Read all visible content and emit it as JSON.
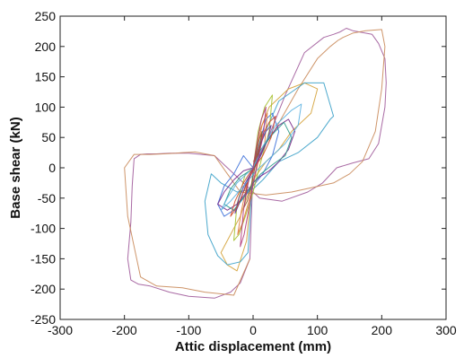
{
  "chart_data": {
    "type": "line",
    "title": "",
    "xlabel": "Attic displacement (mm)",
    "ylabel": "Base shear (kN)",
    "xlim": [
      -300,
      300
    ],
    "ylim": [
      -250,
      250
    ],
    "xticks": [
      -300,
      -200,
      -100,
      0,
      100,
      200,
      300
    ],
    "yticks": [
      -250,
      -200,
      -150,
      -100,
      -50,
      0,
      50,
      100,
      150,
      200,
      250
    ],
    "grid": false,
    "legend": false,
    "series": [
      {
        "color": "#a05a9a",
        "x": [
          0,
          20,
          50,
          80,
          110,
          125,
          135,
          145,
          155,
          185,
          195,
          205,
          207,
          205,
          195,
          180,
          155,
          130,
          108,
          85,
          45,
          10,
          -20,
          -60,
          -100,
          -130,
          -150,
          -165,
          -175,
          -185,
          -188,
          -190,
          -195,
          -190,
          -178,
          -160,
          -130,
          -100,
          -60,
          -35,
          -20,
          -5,
          0
        ],
        "y": [
          0,
          40,
          120,
          190,
          215,
          220,
          224,
          230,
          226,
          220,
          205,
          180,
          140,
          100,
          40,
          15,
          8,
          0,
          -25,
          -40,
          -55,
          -50,
          -20,
          20,
          24,
          24,
          23,
          23,
          22,
          15,
          -30,
          -90,
          -150,
          -185,
          -192,
          -195,
          -205,
          -212,
          -215,
          -205,
          -190,
          -150,
          0
        ]
      },
      {
        "color": "#c98a5a",
        "x": [
          0,
          30,
          70,
          100,
          120,
          132,
          140,
          155,
          175,
          200,
          205,
          200,
          190,
          170,
          150,
          125,
          60,
          20,
          -20,
          -60,
          -90,
          -110,
          -120,
          -140,
          -160,
          -185,
          -200,
          -195,
          -175,
          -150,
          -110,
          -75,
          -30,
          -5
        ],
        "y": [
          10,
          55,
          130,
          180,
          200,
          210,
          215,
          222,
          226,
          228,
          200,
          130,
          60,
          10,
          -10,
          -25,
          -40,
          -45,
          -40,
          20,
          26,
          25,
          24,
          23,
          22,
          22,
          0,
          -80,
          -180,
          -195,
          -198,
          -205,
          -210,
          -150
        ]
      },
      {
        "color": "#d4a23a",
        "x": [
          0,
          10,
          25,
          55,
          80,
          100,
          90,
          60,
          40,
          20,
          0,
          -20,
          -40,
          -50,
          -40,
          -25,
          -10,
          0
        ],
        "y": [
          0,
          60,
          100,
          130,
          140,
          130,
          90,
          60,
          30,
          10,
          -20,
          -80,
          -120,
          -140,
          -160,
          -170,
          -120,
          0
        ]
      },
      {
        "color": "#3aa0c8",
        "x": [
          0,
          15,
          40,
          80,
          110,
          125,
          120,
          100,
          70,
          40,
          15,
          0,
          -25,
          -50,
          -65,
          -75,
          -70,
          -55,
          -40,
          -20,
          -8,
          0
        ],
        "y": [
          0,
          50,
          110,
          140,
          140,
          85,
          80,
          50,
          25,
          10,
          -20,
          -35,
          -40,
          -25,
          -10,
          -55,
          -110,
          -145,
          -160,
          -155,
          -140,
          0
        ]
      },
      {
        "color": "#3b6fd9",
        "x": [
          0,
          10,
          20,
          30,
          40,
          30,
          15,
          0,
          -15,
          -30,
          -45,
          -55,
          -45,
          -30,
          -15,
          0
        ],
        "y": [
          0,
          40,
          80,
          90,
          60,
          20,
          -10,
          -30,
          -50,
          -70,
          -80,
          -60,
          -30,
          -10,
          20,
          0
        ]
      },
      {
        "color": "#a4bf2a",
        "x": [
          0,
          8,
          18,
          30,
          25,
          12,
          0,
          -12,
          -22,
          -30,
          -25,
          -12,
          0
        ],
        "y": [
          0,
          60,
          100,
          120,
          60,
          10,
          -40,
          -80,
          -110,
          -120,
          -60,
          -10,
          0
        ]
      },
      {
        "color": "#e07a3a",
        "x": [
          0,
          6,
          14,
          22,
          18,
          8,
          0,
          -8,
          -16,
          -24,
          -18,
          -8,
          0
        ],
        "y": [
          0,
          30,
          70,
          90,
          40,
          10,
          -30,
          -60,
          -90,
          -110,
          -70,
          -20,
          0
        ]
      },
      {
        "color": "#7a2a8a",
        "x": [
          0,
          10,
          25,
          40,
          55,
          65,
          55,
          40,
          25,
          10,
          0,
          -10,
          -25,
          -40,
          -55,
          -45,
          -30,
          -15,
          0
        ],
        "y": [
          0,
          20,
          50,
          70,
          80,
          60,
          30,
          10,
          -5,
          -15,
          -25,
          -40,
          -60,
          -70,
          -60,
          -40,
          -20,
          -5,
          0
        ]
      },
      {
        "color": "#5a3a9a",
        "x": [
          0,
          5,
          12,
          20,
          28,
          22,
          12,
          4,
          -4,
          -12,
          -20,
          -28,
          -22,
          -12,
          -4,
          0
        ],
        "y": [
          0,
          15,
          40,
          60,
          70,
          45,
          20,
          5,
          -10,
          -30,
          -55,
          -75,
          -50,
          -25,
          -10,
          0
        ]
      },
      {
        "color": "#2a9a8a",
        "x": [
          0,
          12,
          30,
          48,
          60,
          50,
          30,
          12,
          0,
          -12,
          -30,
          -45,
          -35,
          -20,
          -5,
          0
        ],
        "y": [
          0,
          30,
          55,
          75,
          50,
          20,
          5,
          -10,
          -25,
          -45,
          -70,
          -60,
          -35,
          -15,
          -5,
          0
        ]
      },
      {
        "color": "#d24a2a",
        "x": [
          0,
          7,
          15,
          25,
          35,
          28,
          15,
          5,
          -5,
          -15,
          -25,
          -35,
          -28,
          -15,
          -5,
          0
        ],
        "y": [
          0,
          25,
          55,
          75,
          85,
          50,
          20,
          5,
          -15,
          -40,
          -65,
          -80,
          -55,
          -25,
          -8,
          0
        ]
      },
      {
        "color": "#8a5a2a",
        "x": [
          0,
          4,
          9,
          14,
          10,
          4,
          0,
          -4,
          -9,
          -14,
          -10,
          -4,
          0
        ],
        "y": [
          0,
          20,
          45,
          60,
          30,
          8,
          -15,
          -35,
          -55,
          -65,
          -35,
          -10,
          0
        ]
      },
      {
        "color": "#5ab0e0",
        "x": [
          0,
          15,
          35,
          60,
          75,
          70,
          50,
          25,
          5,
          -15,
          -35,
          -50,
          -40,
          -25,
          -10,
          0
        ],
        "y": [
          0,
          35,
          70,
          95,
          105,
          70,
          40,
          15,
          -5,
          -30,
          -55,
          -70,
          -50,
          -25,
          -10,
          0
        ]
      },
      {
        "color": "#b03a7a",
        "x": [
          0,
          6,
          13,
          20,
          16,
          8,
          0,
          -7,
          -14,
          -20,
          -15,
          -7,
          0
        ],
        "y": [
          0,
          40,
          80,
          100,
          55,
          15,
          -25,
          -70,
          -110,
          -130,
          -70,
          -20,
          0
        ]
      }
    ]
  }
}
